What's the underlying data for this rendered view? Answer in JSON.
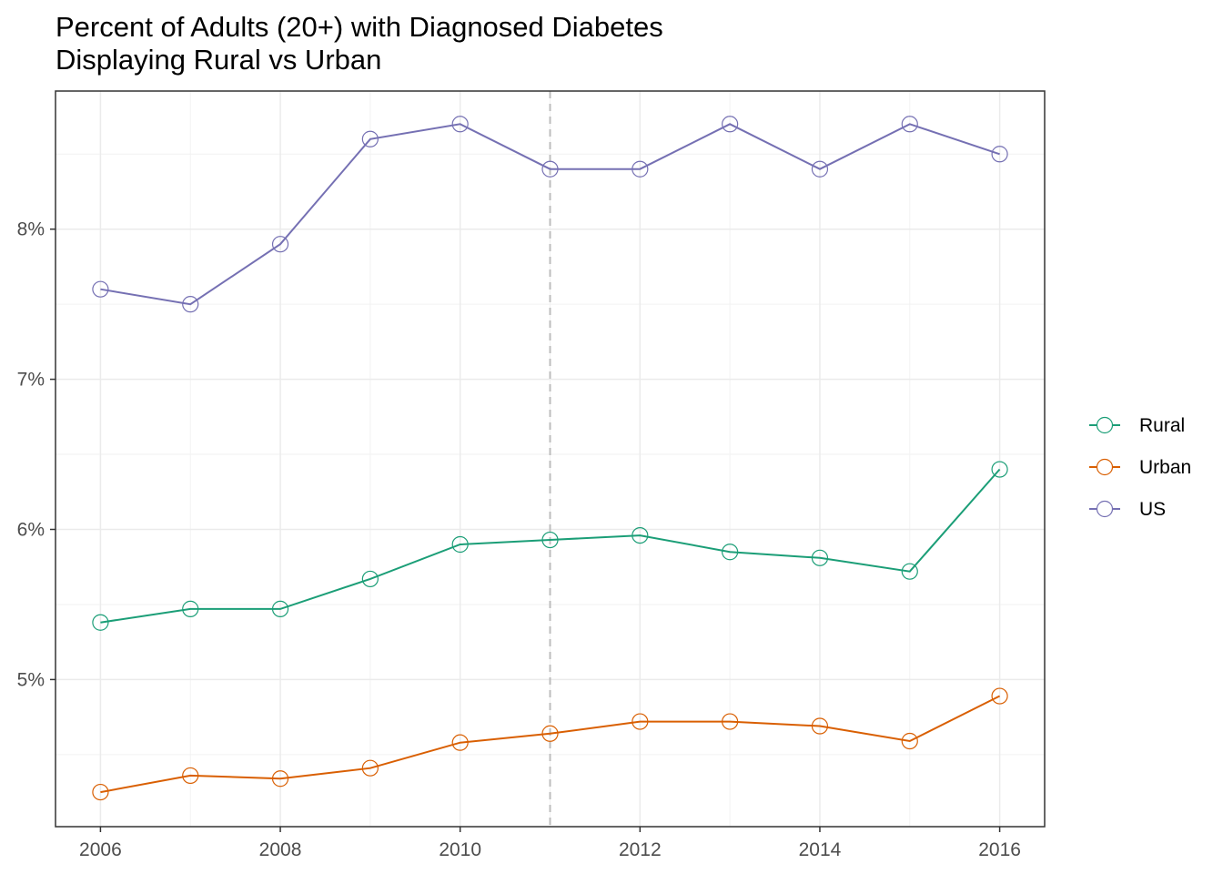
{
  "chart_data": {
    "type": "line",
    "title": "Percent of Adults (20+) with Diagnosed Diabetes",
    "subtitle": "Displaying Rural vs Urban",
    "xlabel": "",
    "ylabel": "",
    "x": [
      2006,
      2007,
      2008,
      2009,
      2010,
      2011,
      2012,
      2013,
      2014,
      2015,
      2016
    ],
    "x_ticks": [
      2006,
      2008,
      2010,
      2012,
      2014,
      2016
    ],
    "y_ticks": [
      5,
      6,
      7,
      8
    ],
    "y_tick_labels": [
      "5%",
      "6%",
      "7%",
      "8%"
    ],
    "xlim": [
      2005.5,
      2016.5
    ],
    "ylim": [
      4.02,
      8.92
    ],
    "vline": 2011,
    "grid": true,
    "legend_position": "right",
    "series": [
      {
        "name": "Rural",
        "color": "#1b9e77",
        "values": [
          5.38,
          5.47,
          5.47,
          5.67,
          5.9,
          5.93,
          5.96,
          5.85,
          5.81,
          5.72,
          6.4
        ]
      },
      {
        "name": "Urban",
        "color": "#d95f02",
        "values": [
          4.25,
          4.36,
          4.34,
          4.41,
          4.58,
          4.64,
          4.72,
          4.72,
          4.69,
          4.59,
          4.89
        ]
      },
      {
        "name": "US",
        "color": "#7570b3",
        "values": [
          7.6,
          7.5,
          7.9,
          8.6,
          8.7,
          8.4,
          8.4,
          8.7,
          8.4,
          8.7,
          8.5
        ]
      }
    ]
  }
}
